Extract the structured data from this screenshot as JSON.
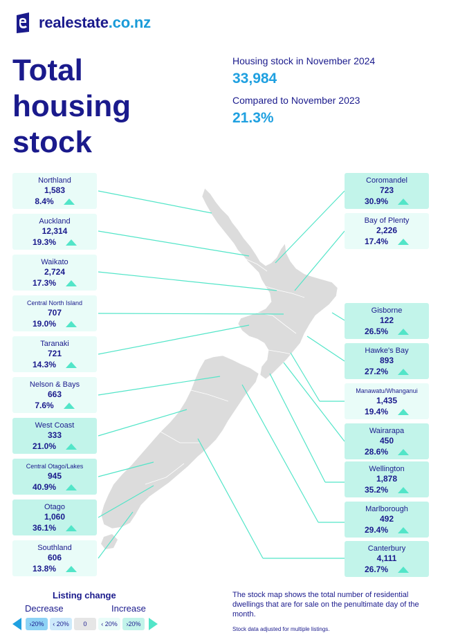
{
  "brand": {
    "name": "realestate",
    "tld": ".co.nz"
  },
  "title_lines": [
    "Total",
    "housing",
    "stock"
  ],
  "stats": {
    "stock_label": "Housing stock in November 2024",
    "stock_value": "33,984",
    "compare_label": "Compared to November 2023",
    "compare_value": "21.3%"
  },
  "regions_left": [
    {
      "name": "Northland",
      "count": "1,583",
      "change": "8.4%",
      "direction": "increase"
    },
    {
      "name": "Auckland",
      "count": "12,314",
      "change": "19.3%",
      "direction": "increase"
    },
    {
      "name": "Waikato",
      "count": "2,724",
      "change": "17.3%",
      "direction": "increase"
    },
    {
      "name": "Central North Island",
      "count": "707",
      "change": "19.0%",
      "direction": "increase"
    },
    {
      "name": "Taranaki",
      "count": "721",
      "change": "14.3%",
      "direction": "increase"
    },
    {
      "name": "Nelson & Bays",
      "count": "663",
      "change": "7.6%",
      "direction": "increase"
    },
    {
      "name": "West Coast",
      "count": "333",
      "change": "21.0%",
      "direction": "increase"
    },
    {
      "name": "Central Otago/Lakes",
      "count": "945",
      "change": "40.9%",
      "direction": "increase"
    },
    {
      "name": "Otago",
      "count": "1,060",
      "change": "36.1%",
      "direction": "increase"
    },
    {
      "name": "Southland",
      "count": "606",
      "change": "13.8%",
      "direction": "increase"
    }
  ],
  "regions_right": [
    {
      "name": "Coromandel",
      "count": "723",
      "change": "30.9%",
      "direction": "increase"
    },
    {
      "name": "Bay of Plenty",
      "count": "2,226",
      "change": "17.4%",
      "direction": "increase"
    },
    {
      "name": "Gisborne",
      "count": "122",
      "change": "26.5%",
      "direction": "increase"
    },
    {
      "name": "Hawke's Bay",
      "count": "893",
      "change": "27.2%",
      "direction": "increase"
    },
    {
      "name": "Manawatu/Whanganui",
      "count": "1,435",
      "change": "19.4%",
      "direction": "increase"
    },
    {
      "name": "Wairarapa",
      "count": "450",
      "change": "28.6%",
      "direction": "increase"
    },
    {
      "name": "Wellington",
      "count": "1,878",
      "change": "35.2%",
      "direction": "increase"
    },
    {
      "name": "Marlborough",
      "count": "492",
      "change": "29.4%",
      "direction": "increase"
    },
    {
      "name": "Canterbury",
      "count": "4,111",
      "change": "26.7%",
      "direction": "increase"
    }
  ],
  "legend": {
    "title": "Listing change",
    "decrease_label": "Decrease",
    "increase_label": "Increase",
    "chips": [
      "›20%",
      "‹ 20%",
      "0",
      "‹ 20%",
      "›20%"
    ]
  },
  "note": "The stock map shows the total number of residential dwellings that are for sale on the penultimate day of the month.",
  "note_small": "Stock data adjusted for multiple listings.",
  "colors": {
    "navy": "#1a1a8c",
    "blue": "#1fa0e0",
    "teal": "#52e5c8",
    "card_light": "#e9fcf8",
    "card_mid": "#c2f4ea",
    "land": "#dcdcdc"
  }
}
